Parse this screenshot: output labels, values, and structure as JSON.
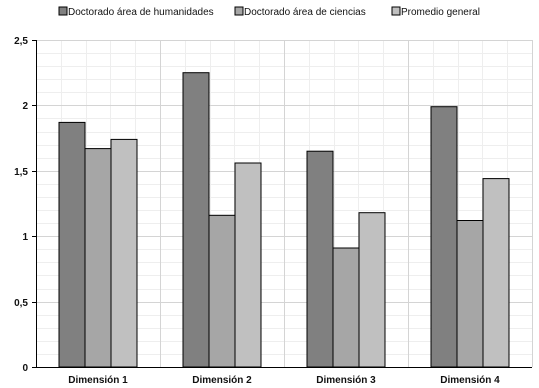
{
  "chart_data": {
    "type": "bar",
    "categories": [
      "Dimensión 1",
      "Dimensión 2",
      "Dimensión 3",
      "Dimensión 4"
    ],
    "series": [
      {
        "name": "Doctorado área de humanidades",
        "values": [
          1.87,
          2.25,
          1.65,
          1.99
        ],
        "color": "#808080"
      },
      {
        "name": "Doctorado área de ciencias",
        "values": [
          1.67,
          1.16,
          0.91,
          1.12
        ],
        "color": "#a6a6a6"
      },
      {
        "name": "Promedio general",
        "values": [
          1.74,
          1.56,
          1.18,
          1.44
        ],
        "color": "#c0c0c0"
      }
    ],
    "yticks": [
      "0",
      "0,5",
      "1",
      "1,5",
      "2",
      "2,5"
    ],
    "ylim": [
      0,
      2.5
    ],
    "ystep": 0.5,
    "grid": true,
    "minor_grid": true,
    "legend": "top"
  }
}
